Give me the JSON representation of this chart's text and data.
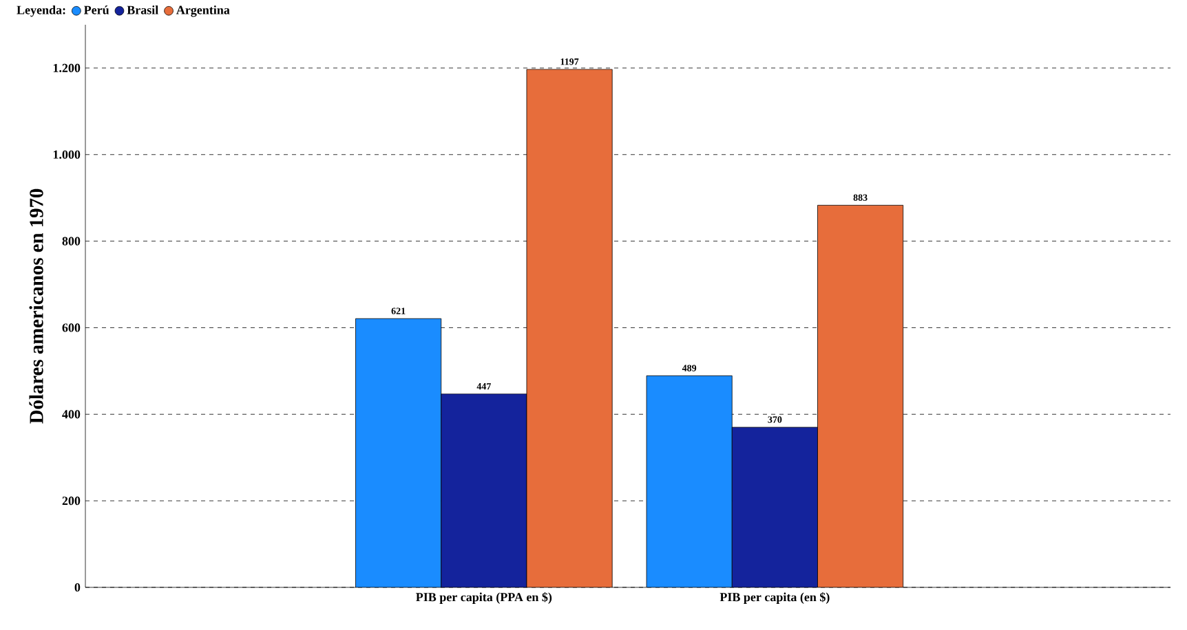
{
  "chart_data": {
    "type": "bar",
    "ylabel": "Dólares americanos en 1970",
    "legend_title": "Leyenda:",
    "legend": "top left",
    "grid": "y",
    "data_labels": true,
    "categories": [
      "PIB per capita (PPA en $)",
      "PIB per capita (en $)"
    ],
    "series": [
      {
        "name": "Perú",
        "color": "#1a8cff",
        "values": [
          621,
          489
        ]
      },
      {
        "name": "Brasil",
        "color": "#14239c",
        "values": [
          447,
          370
        ]
      },
      {
        "name": "Argentina",
        "color": "#e76d3b",
        "values": [
          1197,
          883
        ]
      }
    ],
    "ylim": [
      0,
      1300
    ],
    "yticks": [
      0,
      200,
      400,
      600,
      800,
      {
        "value": 1000,
        "label": "1.000"
      },
      {
        "value": 1200,
        "label": "1.200"
      }
    ]
  }
}
